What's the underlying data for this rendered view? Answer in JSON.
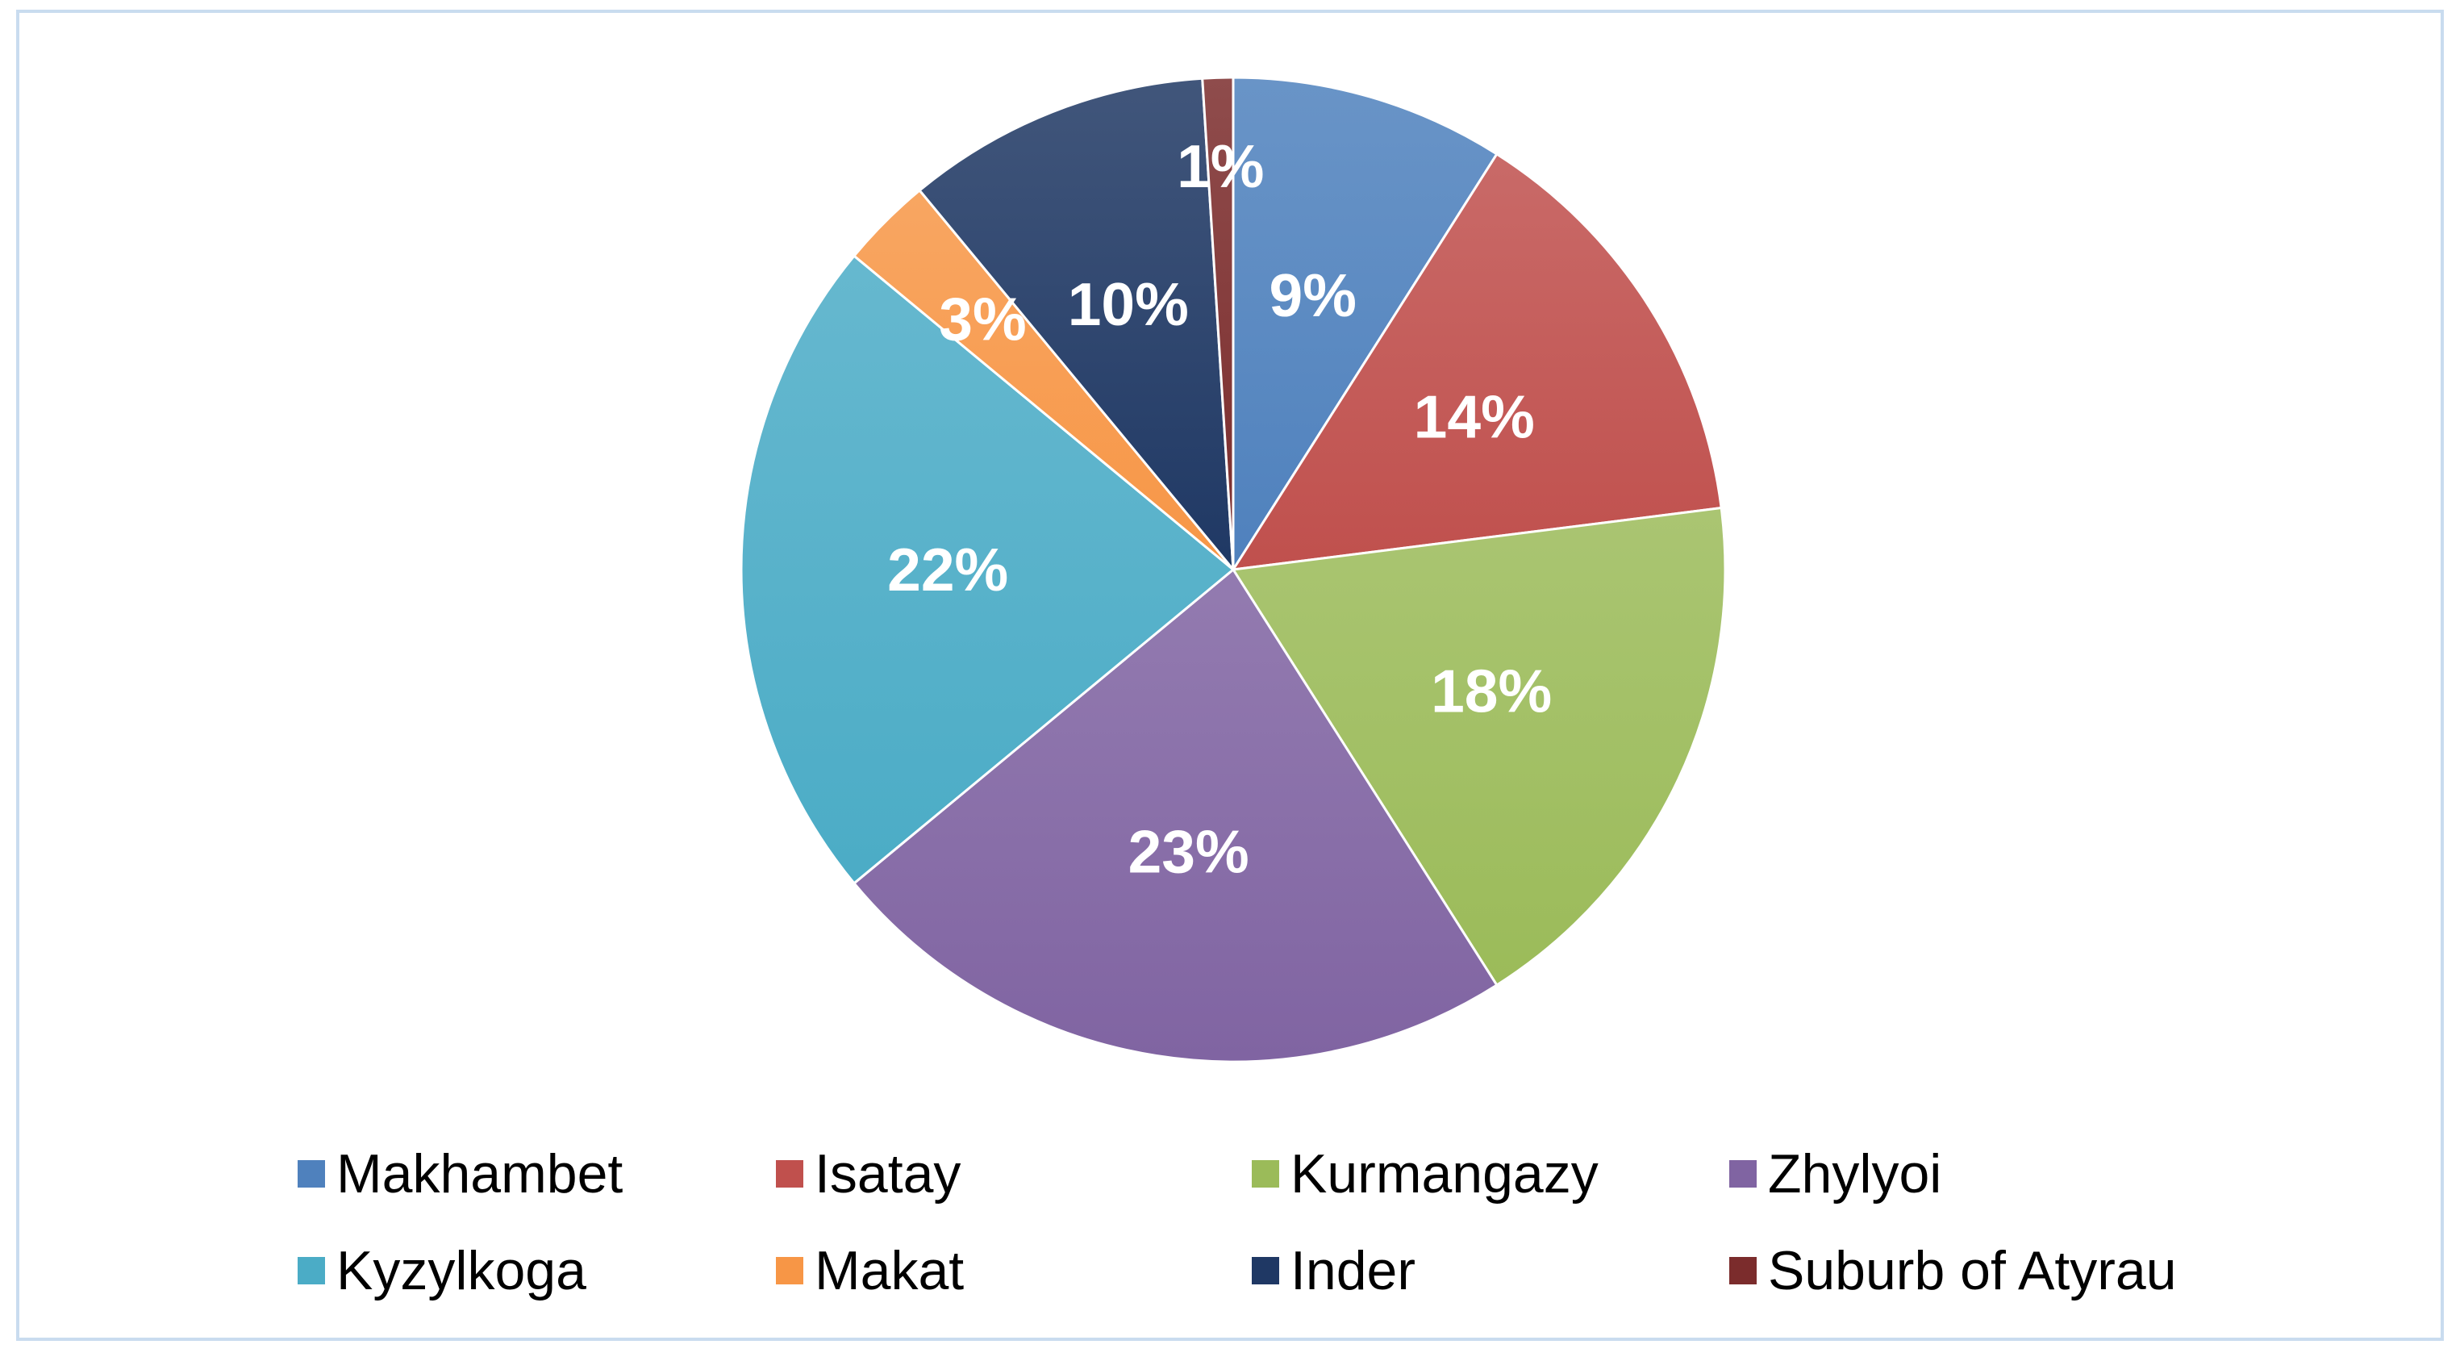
{
  "chart_data": {
    "type": "pie",
    "title": "",
    "unit": "%",
    "categories": [
      "Makhambet",
      "Isatay",
      "Kurmangazy",
      "Zhylyoi",
      "Kyzylkoga",
      "Makat",
      "Inder",
      "Suburb of Atyrau"
    ],
    "values": [
      9,
      14,
      18,
      23,
      22,
      3,
      10,
      1
    ],
    "labels": [
      "9%",
      "14%",
      "18%",
      "23%",
      "22%",
      "3%",
      "10%",
      "1%"
    ],
    "colors": [
      "#4f81bd",
      "#c0504d",
      "#9bbb59",
      "#8064a2",
      "#4bacc6",
      "#f79646",
      "#1f3864",
      "#7b2c2c"
    ],
    "legend": {
      "position": "bottom",
      "rows": [
        [
          "Makhambet",
          "Isatay",
          "Kurmangazy",
          "Zhylyoi"
        ],
        [
          "Kyzylkoga",
          "Makat",
          "Inder",
          "Suburb of Atyrau"
        ]
      ]
    }
  }
}
